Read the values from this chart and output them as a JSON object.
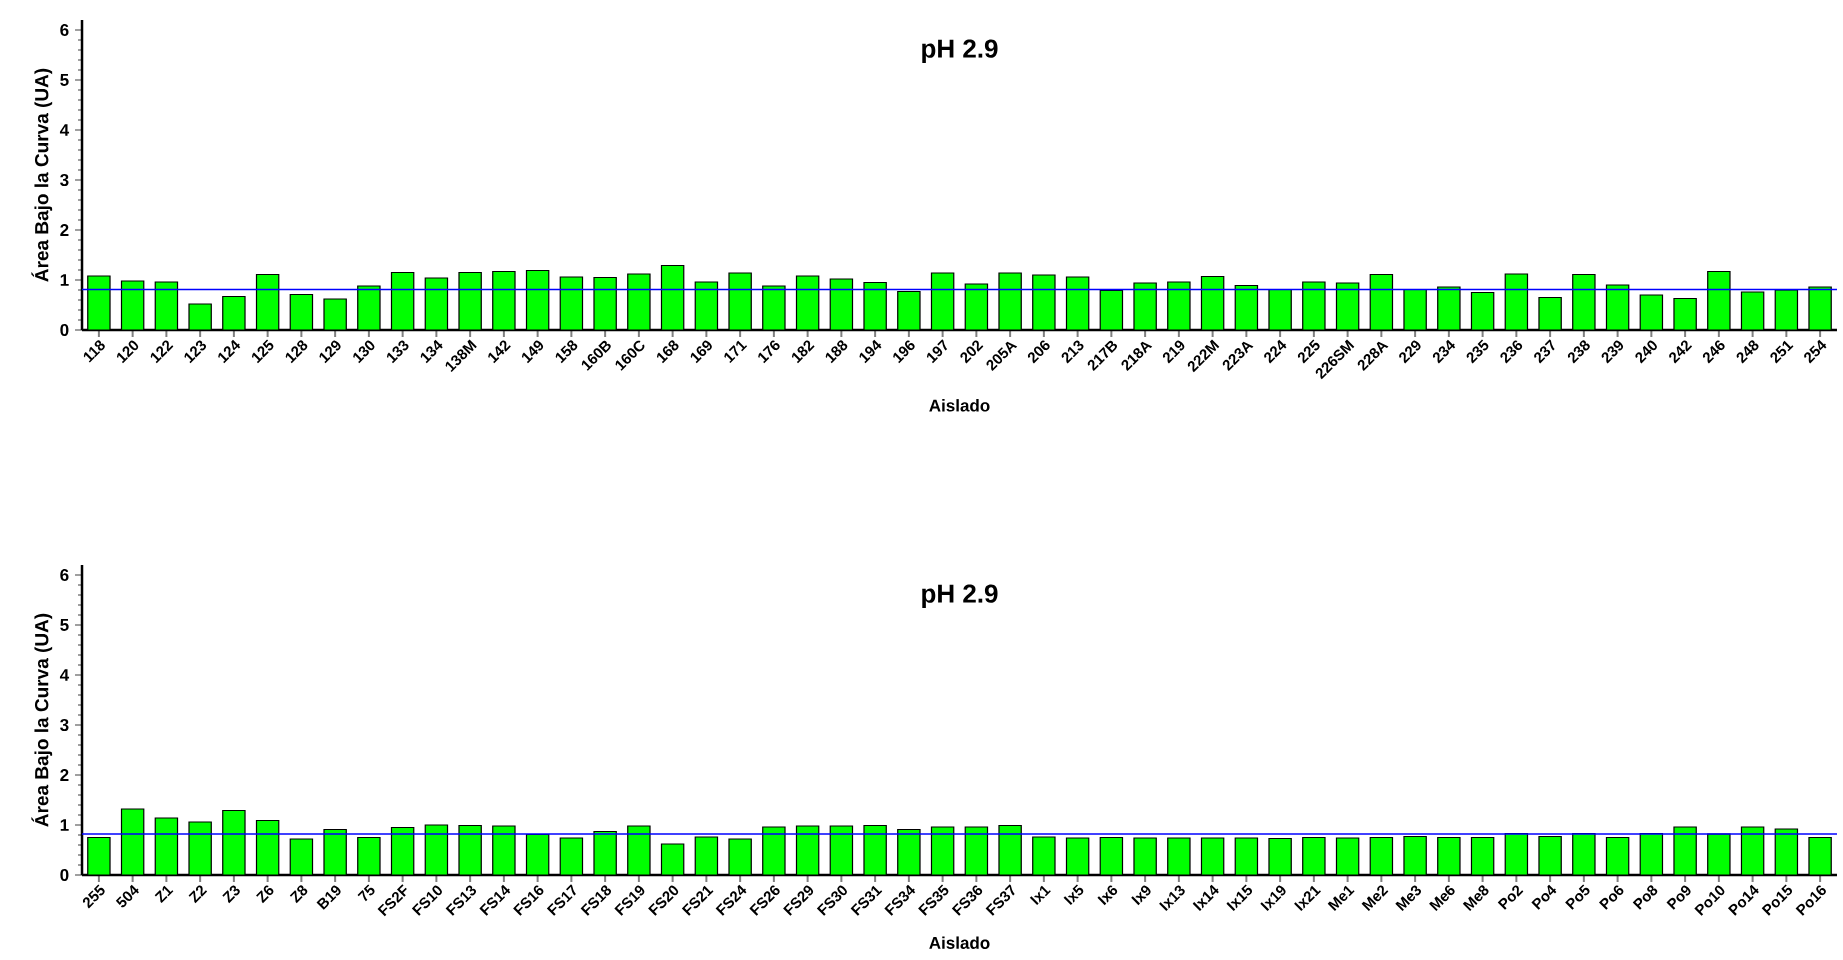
{
  "chart_data": [
    {
      "type": "bar",
      "title": "pH 2.9",
      "xlabel": "Aislado",
      "ylabel": "Área Bajo la Curva (UA)",
      "categories": [
        "118",
        "120",
        "122",
        "123",
        "124",
        "125",
        "128",
        "129",
        "130",
        "133",
        "134",
        "138M",
        "142",
        "149",
        "158",
        "160B",
        "160C",
        "168",
        "169",
        "171",
        "176",
        "182",
        "188",
        "194",
        "196",
        "197",
        "202",
        "205A",
        "206",
        "213",
        "217B",
        "218A",
        "219",
        "222M",
        "223A",
        "224",
        "225",
        "226SM",
        "228A",
        "229",
        "234",
        "235",
        "236",
        "237",
        "238",
        "239",
        "240",
        "242",
        "246",
        "248",
        "251",
        "254"
      ],
      "values": [
        1.08,
        0.98,
        0.96,
        0.52,
        0.67,
        1.11,
        0.71,
        0.62,
        0.88,
        1.15,
        1.04,
        1.15,
        1.17,
        1.19,
        1.06,
        1.05,
        1.12,
        1.29,
        0.96,
        1.14,
        0.88,
        1.08,
        1.02,
        0.95,
        0.77,
        1.14,
        0.92,
        1.14,
        1.1,
        1.06,
        0.79,
        0.94,
        0.96,
        1.07,
        0.89,
        0.81,
        0.96,
        0.94,
        1.11,
        0.81,
        0.86,
        0.75,
        1.12,
        0.65,
        1.11,
        0.9,
        0.7,
        0.63,
        1.17,
        0.76,
        0.8,
        0.86
      ],
      "color": "#00ff00",
      "ylim": [
        0,
        6.2
      ],
      "yticks": [
        0,
        1,
        2,
        3,
        4,
        5,
        6
      ],
      "grid": false,
      "ref_lines": [
        {
          "axis": "y",
          "value": 0.81,
          "color": "#0000ff"
        }
      ]
    },
    {
      "type": "bar",
      "title": "pH 2.9",
      "xlabel": "Aislado",
      "ylabel": "Área Bajo la Curva (UA)",
      "categories": [
        "255",
        "504",
        "Z1",
        "Z2",
        "Z3",
        "Z6",
        "Z8",
        "B19",
        "75",
        "FS2F",
        "FS10",
        "FS13",
        "FS14",
        "FS16",
        "FS17",
        "FS18",
        "FS19",
        "FS20",
        "FS21",
        "FS24",
        "FS26",
        "FS29",
        "FS30",
        "FS31",
        "FS34",
        "FS35",
        "FS36",
        "FS37",
        "Ix1",
        "Ix5",
        "Ix6",
        "Ix9",
        "Ix13",
        "Ix14",
        "Ix15",
        "Ix19",
        "Ix21",
        "Me1",
        "Me2",
        "Me3",
        "Me6",
        "Me8",
        "Po2",
        "Po4",
        "Po5",
        "Po6",
        "Po8",
        "Po9",
        "Po10",
        "Po14",
        "Po15",
        "Po16"
      ],
      "values": [
        0.75,
        1.32,
        1.14,
        1.06,
        1.29,
        1.09,
        0.72,
        0.91,
        0.75,
        0.95,
        1.0,
        0.99,
        0.98,
        0.81,
        0.74,
        0.87,
        0.98,
        0.62,
        0.76,
        0.72,
        0.96,
        0.98,
        0.98,
        0.99,
        0.91,
        0.96,
        0.96,
        0.99,
        0.76,
        0.74,
        0.75,
        0.74,
        0.74,
        0.74,
        0.74,
        0.73,
        0.75,
        0.74,
        0.75,
        0.77,
        0.75,
        0.75,
        0.83,
        0.77,
        0.83,
        0.75,
        0.83,
        0.96,
        0.82,
        0.96,
        0.92,
        0.75
      ],
      "color": "#00ff00",
      "ylim": [
        0,
        6.2
      ],
      "yticks": [
        0,
        1,
        2,
        3,
        4,
        5,
        6
      ],
      "grid": false,
      "ref_lines": [
        {
          "axis": "y",
          "value": 0.82,
          "color": "#0000ff"
        }
      ]
    }
  ]
}
